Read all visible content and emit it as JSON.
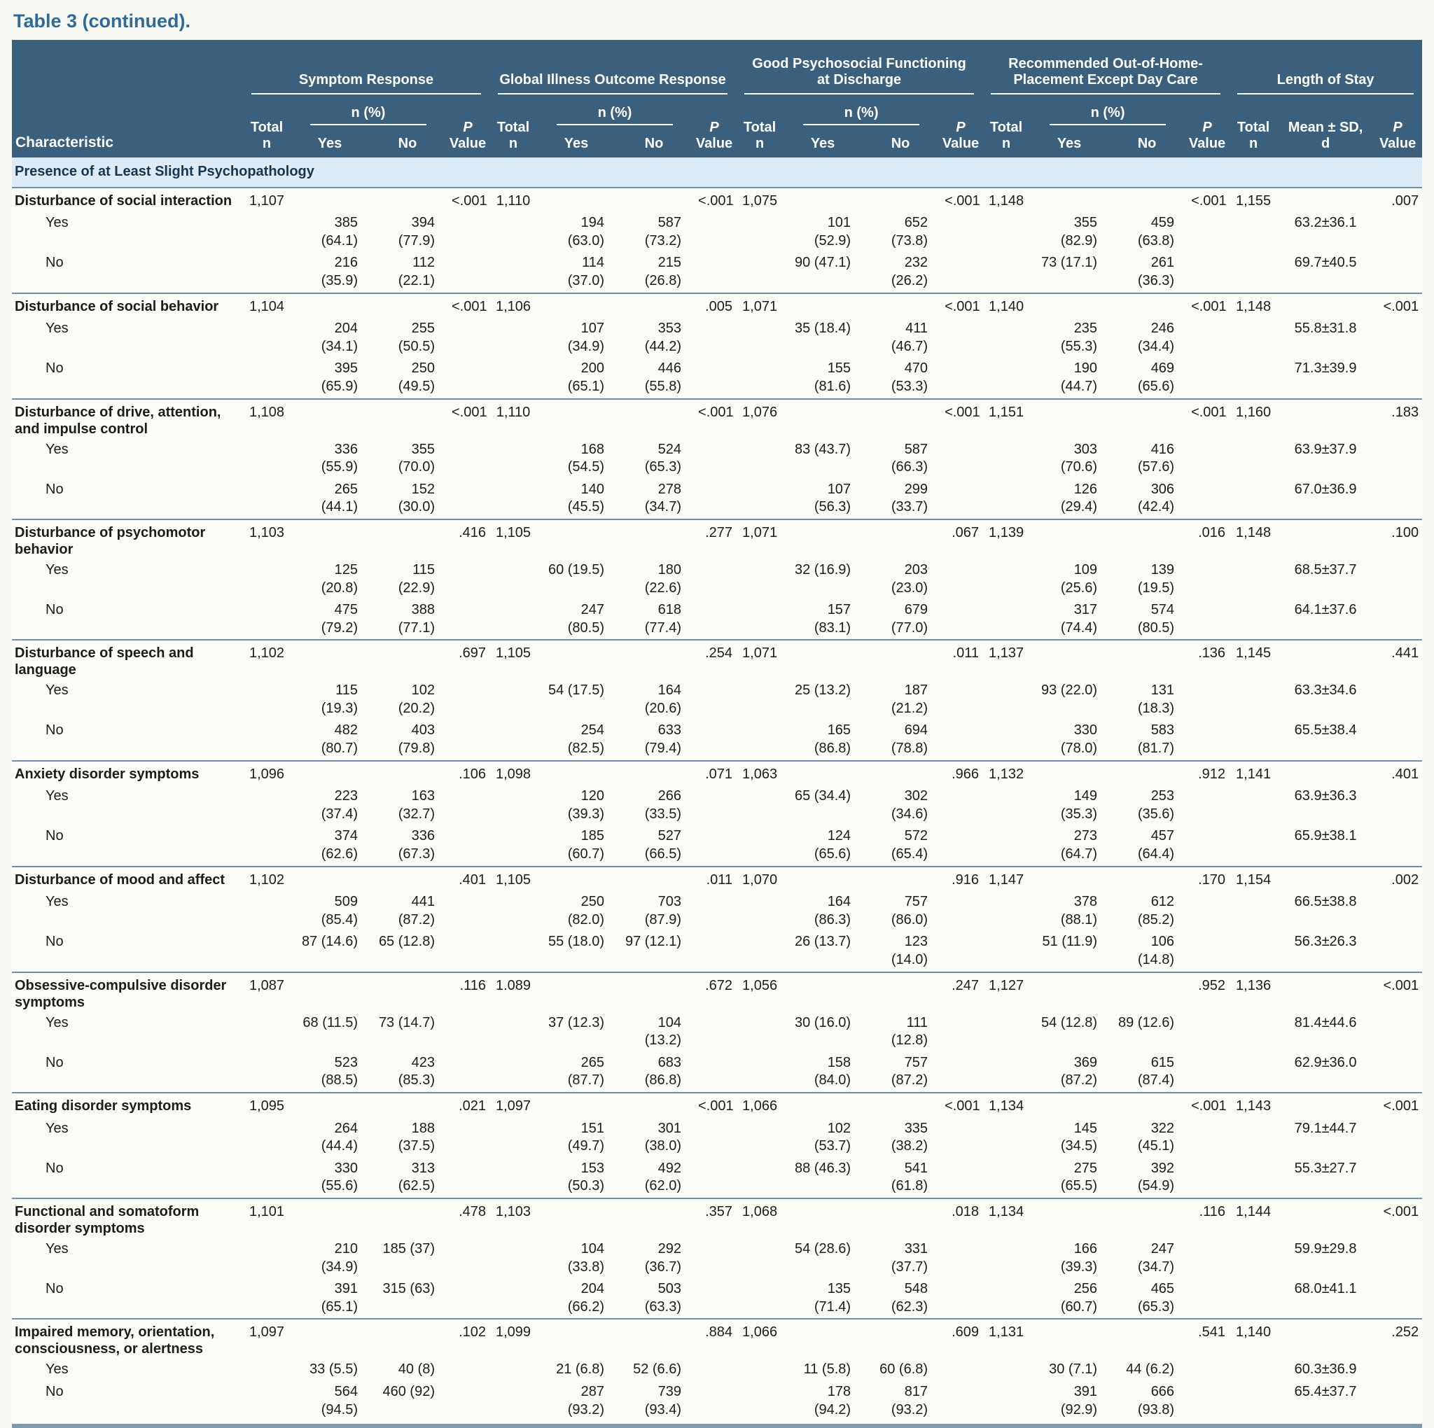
{
  "page": {
    "title": "Table 3 (continued)."
  },
  "colors": {
    "header_bg": "#3a607e",
    "section_bg": "#dcebf5",
    "rule": "#6d90aa",
    "title_text": "#2f6b9a",
    "page_bg": "#f8f8f2"
  },
  "table": {
    "header": {
      "characteristic": "Characteristic",
      "groups": [
        {
          "label": "Symptom Response"
        },
        {
          "label": "Global Illness Outcome Response"
        },
        {
          "label": "Good Psychosocial Functioning at Discharge"
        },
        {
          "label": "Recommended Out-of-Home-Placement Except Day Care"
        },
        {
          "label": "Length of Stay"
        }
      ],
      "total_line1": "Total",
      "total_line2": "n",
      "npct": "n (%)",
      "yes": "Yes",
      "no": "No",
      "p_line1": "P",
      "p_line2": "Value",
      "mean_line1": "Mean ± SD,",
      "mean_line2": "d"
    },
    "section": "Presence of at Least Slight Psychopathology",
    "row_labels": {
      "yes": "Yes",
      "no": "No"
    },
    "rows": [
      {
        "name": "Disturbance of social interaction",
        "totals": [
          "1,107",
          "1,110",
          "1,075",
          "1,148",
          "1,155"
        ],
        "p": [
          "<.001",
          "<.001",
          "<.001",
          "<.001",
          ".007"
        ],
        "yes": [
          "385 (64.1)",
          "394 (77.9)",
          "194 (63.0)",
          "587 (73.2)",
          "101 (52.9)",
          "652 (73.8)",
          "355 (82.9)",
          "459 (63.8)",
          "63.2±36.1"
        ],
        "no": [
          "216 (35.9)",
          "112 (22.1)",
          "114 (37.0)",
          "215 (26.8)",
          "90 (47.1)",
          "232 (26.2)",
          "73 (17.1)",
          "261 (36.3)",
          "69.7±40.5"
        ]
      },
      {
        "name": "Disturbance of social behavior",
        "totals": [
          "1,104",
          "1,106",
          "1,071",
          "1,140",
          "1,148"
        ],
        "p": [
          "<.001",
          ".005",
          "<.001",
          "<.001",
          "<.001"
        ],
        "yes": [
          "204 (34.1)",
          "255 (50.5)",
          "107 (34.9)",
          "353 (44.2)",
          "35 (18.4)",
          "411 (46.7)",
          "235 (55.3)",
          "246 (34.4)",
          "55.8±31.8"
        ],
        "no": [
          "395 (65.9)",
          "250 (49.5)",
          "200 (65.1)",
          "446 (55.8)",
          "155 (81.6)",
          "470 (53.3)",
          "190 (44.7)",
          "469 (65.6)",
          "71.3±39.9"
        ]
      },
      {
        "name": "Disturbance of drive, attention, and impulse control",
        "totals": [
          "1,108",
          "1,110",
          "1,076",
          "1,151",
          "1,160"
        ],
        "p": [
          "<.001",
          "<.001",
          "<.001",
          "<.001",
          ".183"
        ],
        "yes": [
          "336 (55.9)",
          "355 (70.0)",
          "168 (54.5)",
          "524 (65.3)",
          "83 (43.7)",
          "587 (66.3)",
          "303 (70.6)",
          "416 (57.6)",
          "63.9±37.9"
        ],
        "no": [
          "265 (44.1)",
          "152 (30.0)",
          "140 (45.5)",
          "278 (34.7)",
          "107 (56.3)",
          "299 (33.7)",
          "126 (29.4)",
          "306 (42.4)",
          "67.0±36.9"
        ]
      },
      {
        "name": "Disturbance of psychomotor behavior",
        "totals": [
          "1,103",
          "1,105",
          "1,071",
          "1,139",
          "1,148"
        ],
        "p": [
          ".416",
          ".277",
          ".067",
          ".016",
          ".100"
        ],
        "yes": [
          "125 (20.8)",
          "115 (22.9)",
          "60 (19.5)",
          "180 (22.6)",
          "32 (16.9)",
          "203 (23.0)",
          "109 (25.6)",
          "139 (19.5)",
          "68.5±37.7"
        ],
        "no": [
          "475 (79.2)",
          "388 (77.1)",
          "247 (80.5)",
          "618 (77.4)",
          "157 (83.1)",
          "679 (77.0)",
          "317 (74.4)",
          "574 (80.5)",
          "64.1±37.6"
        ]
      },
      {
        "name": "Disturbance of speech and language",
        "totals": [
          "1,102",
          "1,105",
          "1,071",
          "1,137",
          "1,145"
        ],
        "p": [
          ".697",
          ".254",
          ".011",
          ".136",
          ".441"
        ],
        "yes": [
          "115 (19.3)",
          "102 (20.2)",
          "54 (17.5)",
          "164 (20.6)",
          "25 (13.2)",
          "187 (21.2)",
          "93 (22.0)",
          "131 (18.3)",
          "63.3±34.6"
        ],
        "no": [
          "482 (80.7)",
          "403 (79.8)",
          "254 (82.5)",
          "633 (79.4)",
          "165 (86.8)",
          "694 (78.8)",
          "330 (78.0)",
          "583 (81.7)",
          "65.5±38.4"
        ]
      },
      {
        "name": "Anxiety disorder symptoms",
        "totals": [
          "1,096",
          "1,098",
          "1,063",
          "1,132",
          "1,141"
        ],
        "p": [
          ".106",
          ".071",
          ".966",
          ".912",
          ".401"
        ],
        "yes": [
          "223 (37.4)",
          "163 (32.7)",
          "120 (39.3)",
          "266 (33.5)",
          "65 (34.4)",
          "302 (34.6)",
          "149 (35.3)",
          "253 (35.6)",
          "63.9±36.3"
        ],
        "no": [
          "374 (62.6)",
          "336 (67.3)",
          "185 (60.7)",
          "527 (66.5)",
          "124 (65.6)",
          "572 (65.4)",
          "273 (64.7)",
          "457 (64.4)",
          "65.9±38.1"
        ]
      },
      {
        "name": "Disturbance of mood and affect",
        "totals": [
          "1,102",
          "1,105",
          "1,070",
          "1,147",
          "1,154"
        ],
        "p": [
          ".401",
          ".011",
          ".916",
          ".170",
          ".002"
        ],
        "yes": [
          "509 (85.4)",
          "441 (87.2)",
          "250 (82.0)",
          "703 (87.9)",
          "164 (86.3)",
          "757 (86.0)",
          "378 (88.1)",
          "612 (85.2)",
          "66.5±38.8"
        ],
        "no": [
          "87 (14.6)",
          "65 (12.8)",
          "55 (18.0)",
          "97 (12.1)",
          "26 (13.7)",
          "123 (14.0)",
          "51 (11.9)",
          "106 (14.8)",
          "56.3±26.3"
        ]
      },
      {
        "name": "Obsessive-compulsive disorder symptoms",
        "totals": [
          "1,087",
          "1.089",
          "1,056",
          "1,127",
          "1,136"
        ],
        "p": [
          ".116",
          ".672",
          ".247",
          ".952",
          "<.001"
        ],
        "yes": [
          "68 (11.5)",
          "73 (14.7)",
          "37 (12.3)",
          "104 (13.2)",
          "30 (16.0)",
          "111 (12.8)",
          "54 (12.8)",
          "89 (12.6)",
          "81.4±44.6"
        ],
        "no": [
          "523 (88.5)",
          "423 (85.3)",
          "265 (87.7)",
          "683 (86.8)",
          "158 (84.0)",
          "757 (87.2)",
          "369 (87.2)",
          "615 (87.4)",
          "62.9±36.0"
        ]
      },
      {
        "name": "Eating disorder symptoms",
        "totals": [
          "1,095",
          "1,097",
          "1,066",
          "1,134",
          "1,143"
        ],
        "p": [
          ".021",
          "<.001",
          "<.001",
          "<.001",
          "<.001"
        ],
        "yes": [
          "264 (44.4)",
          "188 (37.5)",
          "151 (49.7)",
          "301 (38.0)",
          "102 (53.7)",
          "335 (38.2)",
          "145 (34.5)",
          "322 (45.1)",
          "79.1±44.7"
        ],
        "no": [
          "330 (55.6)",
          "313 (62.5)",
          "153 (50.3)",
          "492 (62.0)",
          "88 (46.3)",
          "541 (61.8)",
          "275 (65.5)",
          "392 (54.9)",
          "55.3±27.7"
        ]
      },
      {
        "name": "Functional and somatoform disorder symptoms",
        "totals": [
          "1,101",
          "1,103",
          "1,068",
          "1,134",
          "1,144"
        ],
        "p": [
          ".478",
          ".357",
          ".018",
          ".116",
          "<.001"
        ],
        "yes": [
          "210 (34.9)",
          "185 (37)",
          "104 (33.8)",
          "292 (36.7)",
          "54 (28.6)",
          "331 (37.7)",
          "166 (39.3)",
          "247 (34.7)",
          "59.9±29.8"
        ],
        "no": [
          "391 (65.1)",
          "315 (63)",
          "204 (66.2)",
          "503 (63.3)",
          "135 (71.4)",
          "548 (62.3)",
          "256 (60.7)",
          "465 (65.3)",
          "68.0±41.1"
        ]
      },
      {
        "name": "Impaired memory, orientation, consciousness, or alertness",
        "totals": [
          "1,097",
          "1,099",
          "1,066",
          "1,131",
          "1,140"
        ],
        "p": [
          ".102",
          ".884",
          ".609",
          ".541",
          ".252"
        ],
        "yes": [
          "33 (5.5)",
          "40 (8)",
          "21 (6.8)",
          "52 (6.6)",
          "11 (5.8)",
          "60 (6.8)",
          "30 (7.1)",
          "44 (6.2)",
          "60.3±36.9"
        ],
        "no": [
          "564 (94.5)",
          "460 (92)",
          "287 (93.2)",
          "739 (93.4)",
          "178 (94.2)",
          "817 (93.2)",
          "391 (92.9)",
          "666 (93.8)",
          "65.4±37.7"
        ]
      }
    ]
  }
}
